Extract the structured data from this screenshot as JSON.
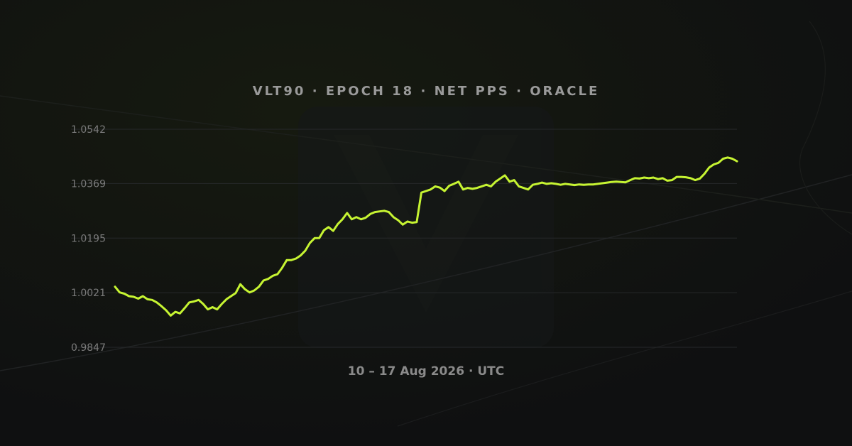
{
  "header": {
    "title": "VLT90 · EPOCH 18 · NET PPS · ORACLE"
  },
  "footer": {
    "subtitle": "10 – 17 Aug 2026 · UTC"
  },
  "colors": {
    "background": "#0f1011",
    "line": "#c6f432",
    "grid": "#26282a",
    "tick_text": "#7b7b7b",
    "title_text": "#9a9a9a"
  },
  "icons": {
    "watermark": "vault-logo-watermark-icon"
  },
  "chart_data": {
    "type": "line",
    "title": "VLT90 · EPOCH 18 · NET PPS · ORACLE",
    "xlabel": "10 – 17 Aug 2026 · UTC",
    "ylabel": "",
    "grid": true,
    "legend": "none",
    "x_range": [
      "2026-08-10",
      "2026-08-17"
    ],
    "ylim": [
      0.9847,
      1.0542
    ],
    "y_ticks": [
      "1.0542",
      "1.0369",
      "1.0195",
      "1.0021",
      "0.9847"
    ],
    "y_tick_values": [
      1.0542,
      1.0369,
      1.0195,
      1.0021,
      0.9847
    ],
    "series": [
      {
        "values": [
          1.004,
          1.0022,
          1.0018,
          1.001,
          1.0008,
          1.0002,
          1.001,
          1.0,
          0.9998,
          0.999,
          0.9978,
          0.9965,
          0.9948,
          0.996,
          0.9955,
          0.9972,
          0.999,
          0.9993,
          0.9998,
          0.9985,
          0.9968,
          0.9975,
          0.9968,
          0.9985,
          1.0,
          1.001,
          1.002,
          1.0048,
          1.0032,
          1.0022,
          1.0028,
          1.004,
          1.006,
          1.0065,
          1.0075,
          1.008,
          1.01,
          1.0125,
          1.0125,
          1.013,
          1.014,
          1.0155,
          1.018,
          1.0195,
          1.0195,
          1.022,
          1.023,
          1.0218,
          1.024,
          1.0255,
          1.0275,
          1.0255,
          1.0262,
          1.0255,
          1.026,
          1.0272,
          1.0278,
          1.028,
          1.0282,
          1.0278,
          1.0262,
          1.0252,
          1.0238,
          1.0248,
          1.0244,
          1.0246,
          1.034,
          1.0345,
          1.035,
          1.036,
          1.0356,
          1.0345,
          1.0362,
          1.0368,
          1.0375,
          1.035,
          1.0355,
          1.0352,
          1.0355,
          1.036,
          1.0365,
          1.036,
          1.0375,
          1.0385,
          1.0395,
          1.0375,
          1.038,
          1.036,
          1.0355,
          1.035,
          1.0365,
          1.0368,
          1.0372,
          1.0368,
          1.037,
          1.0368,
          1.0365,
          1.0368,
          1.0366,
          1.0364,
          1.0366,
          1.0365,
          1.0366,
          1.0366,
          1.0368,
          1.037,
          1.0372,
          1.0374,
          1.0375,
          1.0374,
          1.0373,
          1.038,
          1.0386,
          1.0385,
          1.0388,
          1.0386,
          1.0388,
          1.0383,
          1.0386,
          1.0378,
          1.038,
          1.039,
          1.039,
          1.0389,
          1.0386,
          1.038,
          1.0385,
          1.04,
          1.042,
          1.043,
          1.0435,
          1.0448,
          1.0452,
          1.0448,
          1.044
        ]
      }
    ]
  }
}
